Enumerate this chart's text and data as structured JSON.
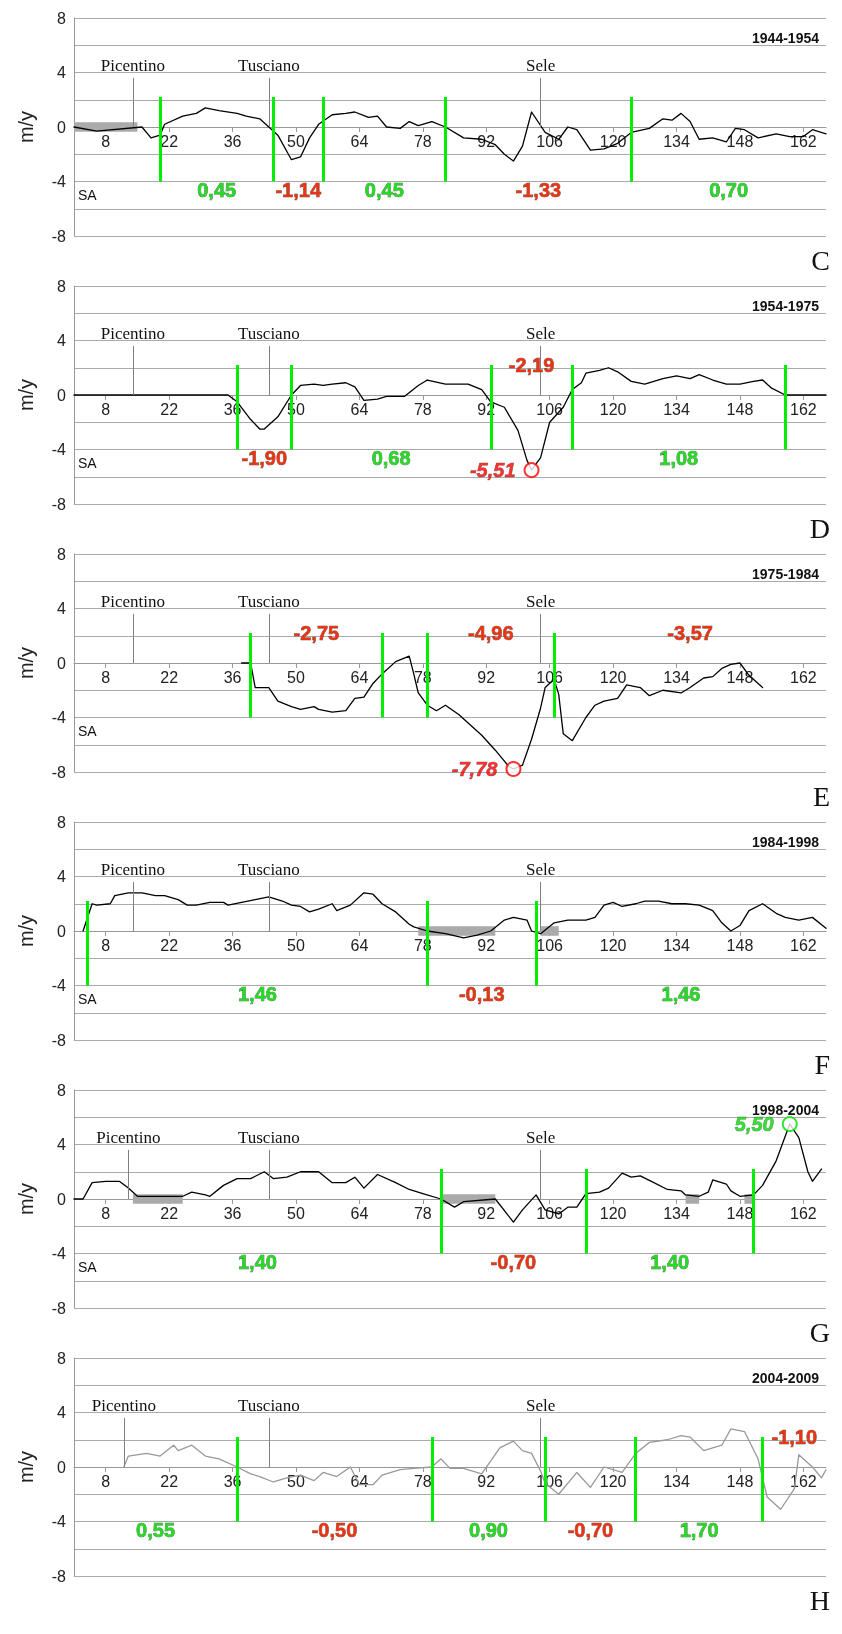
{
  "chart_data": [
    {
      "type": "line",
      "title": "1944-1954",
      "ylabel": "m/y",
      "xlim": [
        1,
        167
      ],
      "xticks": [
        8,
        22,
        36,
        50,
        64,
        78,
        92,
        106,
        120,
        134,
        148,
        162
      ],
      "ylim": [
        -8,
        8
      ],
      "yticks": [
        -8,
        {
          "value": -6,
          "label": null
        },
        -4,
        {
          "value": -2,
          "label": null
        },
        0,
        {
          "value": 2,
          "label": null
        },
        4,
        {
          "value": 6,
          "label": null
        },
        8
      ],
      "grid": "y",
      "series": [
        {
          "color": "#000000",
          "x": [
            1,
            6,
            16,
            18,
            20,
            21,
            25,
            28,
            30,
            33,
            37,
            39,
            42,
            44,
            46,
            49,
            51,
            53,
            55,
            58,
            61,
            63,
            66,
            68,
            70,
            73,
            75,
            77,
            80,
            83,
            87,
            91,
            94,
            96,
            98,
            100,
            102,
            105,
            108,
            110,
            112,
            115,
            118,
            121,
            124,
            128,
            131,
            133,
            135,
            137,
            139,
            142,
            145,
            147,
            149,
            152,
            156,
            159,
            162,
            164,
            167
          ],
          "values": [
            0,
            -0.3,
            0,
            -0.8,
            -0.6,
            0.2,
            0.8,
            1.0,
            1.4,
            1.2,
            1.0,
            0.8,
            0.6,
            0,
            -0.6,
            -2.4,
            -2.2,
            -0.8,
            0.2,
            0.9,
            1.0,
            1.1,
            0.7,
            0.8,
            0,
            -0.1,
            0.4,
            0.1,
            0.4,
            0,
            -0.8,
            -0.9,
            -1.3,
            -2.0,
            -2.5,
            -1.4,
            1.1,
            -0.4,
            -0.9,
            0,
            -0.2,
            -1.7,
            -1.6,
            -1.2,
            -0.4,
            -0.1,
            0.6,
            0.5,
            1.0,
            0.4,
            -0.9,
            -0.8,
            -1.1,
            -0.1,
            -0.2,
            -0.8,
            -0.5,
            -0.7,
            -0.7,
            -0.2,
            -0.5
          ]
        }
      ],
      "bands": [
        {
          "axis": "x",
          "from": 1,
          "to": 15,
          "color": "#aaaaaa"
        }
      ],
      "ref_lines": [
        {
          "axis": "x",
          "value": 14,
          "label": "Picentino",
          "color": "#808080"
        },
        {
          "axis": "x",
          "value": 44,
          "label": "Tusciano",
          "color": "#808080"
        },
        {
          "axis": "x",
          "value": 104,
          "label": "Sele",
          "color": "#808080"
        },
        {
          "axis": "x",
          "value": 20,
          "color": "#00ee00"
        },
        {
          "axis": "x",
          "value": 45,
          "color": "#00ee00"
        },
        {
          "axis": "x",
          "value": 56,
          "color": "#00ee00"
        },
        {
          "axis": "x",
          "value": 83,
          "color": "#00ee00"
        },
        {
          "axis": "x",
          "value": 124,
          "color": "#00ee00"
        }
      ],
      "annotations": [
        "C",
        "SA",
        "0,45",
        "-1,14",
        "0,45",
        "-1,33",
        "0,70"
      ]
    },
    {
      "type": "line",
      "title": "1954-1975",
      "ylabel": "m/y",
      "xlim": [
        1,
        167
      ],
      "xticks": [
        8,
        22,
        36,
        50,
        64,
        78,
        92,
        106,
        120,
        134,
        148,
        162
      ],
      "ylim": [
        -8,
        8
      ],
      "yticks": [
        -8,
        {
          "value": -6,
          "label": null
        },
        -4,
        {
          "value": -2,
          "label": null
        },
        0,
        {
          "value": 2,
          "label": null
        },
        4,
        {
          "value": 6,
          "label": null
        },
        8
      ],
      "grid": "y",
      "series": [
        {
          "color": "#000000",
          "x": [
            1,
            35,
            37,
            40,
            42,
            43,
            46,
            49,
            51,
            54,
            56,
            58,
            61,
            63,
            65,
            68,
            70,
            74,
            77,
            79,
            83,
            88,
            91,
            93,
            96,
            99,
            101,
            102,
            104,
            106,
            109,
            111,
            113,
            114,
            117,
            119,
            121,
            124,
            127,
            131,
            134,
            137,
            139,
            142,
            145,
            148,
            151,
            153,
            155,
            158,
            167
          ],
          "values": [
            0,
            0,
            -0.5,
            -1.8,
            -2.5,
            -2.5,
            -1.6,
            0,
            0.7,
            0.8,
            0.7,
            0.8,
            0.9,
            0.6,
            -0.4,
            -0.3,
            -0.1,
            -0.1,
            0.7,
            1.1,
            0.8,
            0.8,
            0.4,
            -0.5,
            -0.9,
            -2.6,
            -4.8,
            -5.51,
            -4.6,
            -2.0,
            -0.9,
            0.4,
            0.9,
            1.6,
            1.8,
            2.0,
            1.7,
            1.0,
            0.8,
            1.2,
            1.4,
            1.2,
            1.5,
            1.1,
            0.8,
            0.8,
            1.0,
            1.1,
            0.5,
            0,
            0
          ]
        },
        {
          "type": "scatter",
          "marker": "circle",
          "color": "#ff0000",
          "x": [
            102
          ],
          "values": [
            -5.51
          ],
          "value_labels": [
            "-5,51"
          ]
        }
      ],
      "ref_lines": [
        {
          "axis": "x",
          "value": 14,
          "label": "Picentino",
          "color": "#808080"
        },
        {
          "axis": "x",
          "value": 44,
          "label": "Tusciano",
          "color": "#808080"
        },
        {
          "axis": "x",
          "value": 104,
          "label": "Sele",
          "color": "#808080"
        },
        {
          "axis": "x",
          "value": 37,
          "color": "#00ee00"
        },
        {
          "axis": "x",
          "value": 49,
          "color": "#00ee00"
        },
        {
          "axis": "x",
          "value": 93,
          "color": "#00ee00"
        },
        {
          "axis": "x",
          "value": 111,
          "color": "#00ee00"
        },
        {
          "axis": "x",
          "value": 158,
          "color": "#00ee00"
        }
      ],
      "annotations": [
        "D",
        "SA",
        "-1,90",
        "0,68",
        "-2,19",
        "1,08"
      ]
    },
    {
      "type": "line",
      "title": "1975-1984",
      "ylabel": "m/y",
      "xlim": [
        1,
        167
      ],
      "xticks": [
        8,
        22,
        36,
        50,
        64,
        78,
        92,
        106,
        120,
        134,
        148,
        162
      ],
      "ylim": [
        -8,
        8
      ],
      "yticks": [
        -8,
        {
          "value": -6,
          "label": null
        },
        -4,
        {
          "value": -2,
          "label": null
        },
        0,
        {
          "value": 2,
          "label": null
        },
        4,
        {
          "value": 6,
          "label": null
        },
        8
      ],
      "grid": "y",
      "series": [
        {
          "color": "#000000",
          "x": [
            38,
            40,
            41,
            44,
            46,
            49,
            51,
            54,
            55,
            58,
            61,
            63,
            65,
            67,
            69,
            72,
            75,
            76,
            77,
            79,
            81,
            83,
            86,
            88,
            91,
            94,
            97,
            98,
            100,
            102,
            104,
            105,
            107,
            108,
            109,
            111,
            114,
            116,
            118,
            121,
            123,
            126,
            128,
            131,
            135,
            137,
            140,
            142,
            144,
            146,
            148,
            150,
            153
          ],
          "values": [
            0,
            0,
            -1.8,
            -1.8,
            -2.8,
            -3.2,
            -3.4,
            -3.2,
            -3.4,
            -3.6,
            -3.5,
            -2.6,
            -2.5,
            -1.5,
            -0.8,
            0.1,
            0.5,
            -0.8,
            -2.2,
            -3.1,
            -3.5,
            -3.1,
            -3.8,
            -4.4,
            -5.3,
            -6.4,
            -7.6,
            -7.78,
            -7.5,
            -5.6,
            -3.3,
            -1.8,
            -1.2,
            -2.3,
            -5.2,
            -5.7,
            -4.0,
            -3.1,
            -2.8,
            -2.6,
            -1.6,
            -1.8,
            -2.4,
            -2.0,
            -2.2,
            -1.8,
            -1.1,
            -1.0,
            -0.4,
            -0.1,
            0,
            -0.9,
            -1.8
          ]
        },
        {
          "type": "scatter",
          "marker": "circle",
          "color": "#ff0000",
          "x": [
            98
          ],
          "values": [
            -7.78
          ],
          "value_labels": [
            "-7,78"
          ]
        }
      ],
      "ref_lines": [
        {
          "axis": "x",
          "value": 14,
          "label": "Picentino",
          "color": "#808080"
        },
        {
          "axis": "x",
          "value": 44,
          "label": "Tusciano",
          "color": "#808080"
        },
        {
          "axis": "x",
          "value": 104,
          "label": "Sele",
          "color": "#808080"
        },
        {
          "axis": "x",
          "value": 40,
          "color": "#00ee00"
        },
        {
          "axis": "x",
          "value": 69,
          "color": "#00ee00"
        },
        {
          "axis": "x",
          "value": 79,
          "color": "#00ee00"
        },
        {
          "axis": "x",
          "value": 107,
          "color": "#00ee00"
        }
      ],
      "annotations": [
        "E",
        "SA",
        "-2,75",
        "-4,96",
        "-3,57"
      ]
    },
    {
      "type": "line",
      "title": "1984-1998",
      "ylabel": "m/y",
      "xlim": [
        1,
        167
      ],
      "xticks": [
        8,
        22,
        36,
        50,
        64,
        78,
        92,
        106,
        120,
        134,
        148,
        162
      ],
      "ylim": [
        -8,
        8
      ],
      "yticks": [
        -8,
        {
          "value": -6,
          "label": null
        },
        -4,
        {
          "value": -2,
          "label": null
        },
        0,
        {
          "value": 2,
          "label": null
        },
        4,
        {
          "value": 6,
          "label": null
        },
        8
      ],
      "grid": "y",
      "series": [
        {
          "color": "#000000",
          "x": [
            3,
            5,
            6,
            9,
            10,
            13,
            16,
            19,
            21,
            24,
            26,
            28,
            31,
            34,
            35,
            38,
            41,
            44,
            47,
            49,
            51,
            53,
            55,
            58,
            59,
            62,
            65,
            67,
            69,
            72,
            75,
            76,
            79,
            83,
            87,
            90,
            93,
            96,
            98,
            101,
            102,
            104,
            107,
            110,
            114,
            116,
            118,
            120,
            122,
            125,
            127,
            130,
            133,
            136,
            139,
            142,
            144,
            146,
            148,
            150,
            153,
            156,
            158,
            161,
            164,
            167
          ],
          "values": [
            0,
            2.0,
            1.9,
            2.0,
            2.6,
            2.8,
            2.8,
            2.6,
            2.6,
            2.3,
            1.9,
            1.9,
            2.1,
            2.1,
            1.9,
            2.1,
            2.3,
            2.5,
            2.2,
            1.9,
            1.8,
            1.4,
            1.6,
            2.0,
            1.5,
            1.9,
            2.8,
            2.7,
            2.0,
            1.4,
            0.5,
            0.3,
            0,
            -0.2,
            -0.5,
            -0.3,
            0,
            0.8,
            1.0,
            0.8,
            0,
            -0.2,
            0.6,
            0.8,
            0.8,
            1.0,
            1.9,
            2.1,
            1.8,
            2.0,
            2.2,
            2.2,
            2.0,
            2.0,
            1.9,
            1.5,
            0.6,
            0,
            0.4,
            1.5,
            2.0,
            1.3,
            1.0,
            0.8,
            1.0,
            0.2
          ]
        }
      ],
      "bands": [
        {
          "axis": "x",
          "from": 77,
          "to": 94,
          "color": "#aaaaaa"
        },
        {
          "axis": "x",
          "from": 104,
          "to": 108,
          "color": "#aaaaaa"
        }
      ],
      "ref_lines": [
        {
          "axis": "x",
          "value": 14,
          "label": "Picentino",
          "color": "#808080"
        },
        {
          "axis": "x",
          "value": 44,
          "label": "Tusciano",
          "color": "#808080"
        },
        {
          "axis": "x",
          "value": 104,
          "label": "Sele",
          "color": "#808080"
        },
        {
          "axis": "x",
          "value": 4,
          "color": "#00ee00"
        },
        {
          "axis": "x",
          "value": 79,
          "color": "#00ee00"
        },
        {
          "axis": "x",
          "value": 103,
          "color": "#00ee00"
        }
      ],
      "annotations": [
        "F",
        "SA",
        "1,46",
        "-0,13",
        "1,46"
      ]
    },
    {
      "type": "line",
      "title": "1998-2004",
      "ylabel": "m/y",
      "xlim": [
        1,
        167
      ],
      "xticks": [
        8,
        22,
        36,
        50,
        64,
        78,
        92,
        106,
        120,
        134,
        148,
        162
      ],
      "ylim": [
        -8,
        8
      ],
      "yticks": [
        -8,
        {
          "value": -6,
          "label": null
        },
        -4,
        {
          "value": -2,
          "label": null
        },
        0,
        {
          "value": 2,
          "label": null
        },
        4,
        {
          "value": 6,
          "label": null
        },
        8
      ],
      "grid": "y",
      "series": [
        {
          "color": "#000000",
          "x": [
            1,
            3,
            5,
            8,
            11,
            13,
            15,
            25,
            27,
            30,
            31,
            34,
            37,
            40,
            43,
            45,
            48,
            51,
            55,
            58,
            61,
            63,
            65,
            68,
            72,
            75,
            78,
            82,
            85,
            87,
            94,
            98,
            100,
            103,
            105,
            108,
            110,
            112,
            114,
            117,
            119,
            122,
            124,
            126,
            129,
            132,
            135,
            136,
            139,
            141,
            142,
            145,
            146,
            148,
            151,
            153,
            156,
            158,
            159,
            161,
            163,
            164,
            166
          ],
          "values": [
            0,
            0,
            1.2,
            1.3,
            1.3,
            0.8,
            0.2,
            0.2,
            0.5,
            0.3,
            0.2,
            1.0,
            1.5,
            1.5,
            2.0,
            1.5,
            1.6,
            2.0,
            2.0,
            1.2,
            1.2,
            1.6,
            0.8,
            1.8,
            1.2,
            0.7,
            0.4,
            0,
            -0.6,
            -0.2,
            0,
            -1.7,
            -0.8,
            0.3,
            -0.8,
            -1.1,
            -0.6,
            -0.6,
            0.4,
            0.5,
            0.8,
            1.9,
            1.6,
            1.7,
            1.2,
            0.7,
            0.6,
            0.3,
            0.2,
            0.5,
            1.4,
            1.1,
            0.6,
            0.2,
            0.3,
            1.0,
            2.8,
            4.6,
            5.5,
            4.5,
            2.0,
            1.3,
            2.2
          ]
        },
        {
          "type": "scatter",
          "marker": "circle",
          "color": "#00dd00",
          "x": [
            159
          ],
          "values": [
            5.5
          ],
          "value_labels": [
            "5,50"
          ]
        }
      ],
      "bands": [
        {
          "axis": "x",
          "from": 14,
          "to": 25,
          "color": "#aaaaaa"
        },
        {
          "axis": "x",
          "from": 82,
          "to": 94,
          "color": "#aaaaaa"
        },
        {
          "axis": "x",
          "from": 136,
          "to": 139,
          "color": "#aaaaaa"
        },
        {
          "axis": "x",
          "from": 149,
          "to": 151,
          "color": "#aaaaaa"
        }
      ],
      "ref_lines": [
        {
          "axis": "x",
          "value": 13,
          "label": "Picentino",
          "color": "#808080"
        },
        {
          "axis": "x",
          "value": 44,
          "label": "Tusciano",
          "color": "#808080"
        },
        {
          "axis": "x",
          "value": 104,
          "label": "Sele",
          "color": "#808080"
        },
        {
          "axis": "x",
          "value": 82,
          "color": "#00ee00"
        },
        {
          "axis": "x",
          "value": 114,
          "color": "#00ee00"
        },
        {
          "axis": "x",
          "value": 151,
          "color": "#00ee00"
        }
      ],
      "annotations": [
        "G",
        "SA",
        "1,40",
        "-0,70",
        "1,40"
      ]
    },
    {
      "type": "line",
      "title": "2004-2009",
      "ylabel": "m/y",
      "xlim": [
        1,
        167
      ],
      "xticks": [
        8,
        22,
        36,
        50,
        64,
        78,
        92,
        106,
        120,
        134,
        148,
        162
      ],
      "ylim": [
        -8,
        8
      ],
      "yticks": [
        -8,
        {
          "value": -6,
          "label": null
        },
        -4,
        {
          "value": -2,
          "label": null
        },
        0,
        {
          "value": 2,
          "label": null
        },
        4,
        {
          "value": 6,
          "label": null
        },
        8
      ],
      "grid": "y",
      "series": [
        {
          "color": "#999999",
          "x": [
            12,
            13,
            17,
            20,
            23,
            24,
            27,
            30,
            33,
            37,
            40,
            42,
            45,
            48,
            51,
            54,
            56,
            59,
            62,
            64,
            67,
            69,
            73,
            76,
            80,
            82,
            84,
            87,
            91,
            95,
            98,
            100,
            102,
            104,
            105,
            108,
            112,
            115,
            118,
            122,
            125,
            128,
            132,
            135,
            137,
            140,
            144,
            146,
            149,
            152,
            154,
            157,
            160,
            161,
            164,
            166,
            167
          ],
          "values": [
            0,
            0.8,
            1.0,
            0.8,
            1.6,
            1.2,
            1.6,
            0.8,
            0.6,
            0,
            -0.5,
            -0.7,
            -1.1,
            -0.8,
            -0.6,
            -1.0,
            -0.4,
            -0.7,
            0,
            -1.3,
            -1.3,
            -0.6,
            -0.2,
            -0.1,
            0,
            0.6,
            -0.1,
            -0.1,
            -0.5,
            1.4,
            1.9,
            1.2,
            1.0,
            -0.3,
            -1.2,
            -2.0,
            -0.4,
            -1.5,
            0,
            -0.4,
            1.0,
            1.8,
            2.0,
            2.3,
            2.2,
            1.2,
            1.6,
            2.8,
            2.6,
            0.6,
            -2.2,
            -3.1,
            -1.6,
            0.9,
            0,
            -0.8,
            -0.2
          ]
        }
      ],
      "ref_lines": [
        {
          "axis": "x",
          "value": 12,
          "label": "Picentino",
          "color": "#808080"
        },
        {
          "axis": "x",
          "value": 44,
          "label": "Tusciano",
          "color": "#808080"
        },
        {
          "axis": "x",
          "value": 104,
          "label": "Sele",
          "color": "#808080"
        },
        {
          "axis": "x",
          "value": 37,
          "color": "#00ee00"
        },
        {
          "axis": "x",
          "value": 80,
          "color": "#00ee00"
        },
        {
          "axis": "x",
          "value": 105,
          "color": "#00ee00"
        },
        {
          "axis": "x",
          "value": 125,
          "color": "#00ee00"
        },
        {
          "axis": "x",
          "value": 153,
          "color": "#00ee00"
        }
      ],
      "annotations": [
        "H",
        "0,55",
        "-0,50",
        "0,90",
        "-0,70",
        "1,70",
        "-1,10"
      ]
    }
  ]
}
